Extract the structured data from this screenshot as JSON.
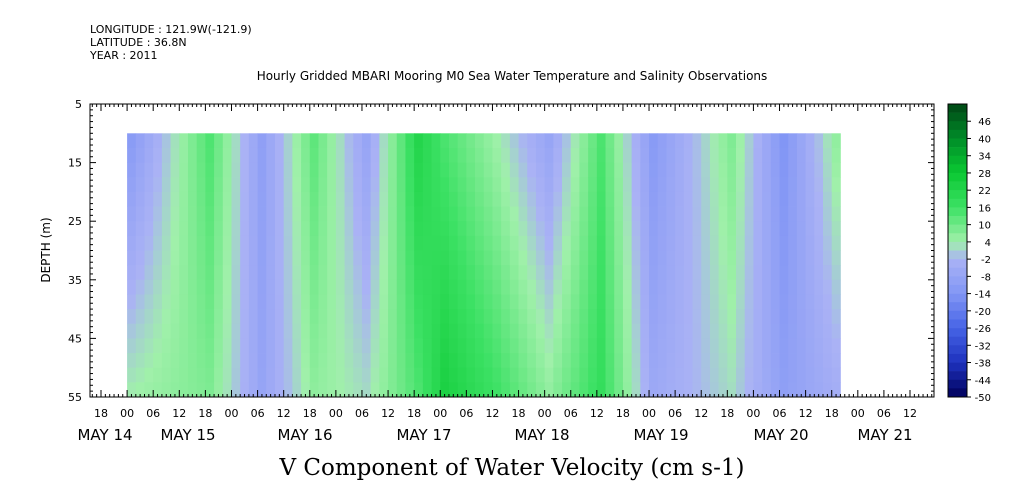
{
  "header": {
    "longitude": "LONGITUDE : 121.9W(-121.9)",
    "latitude": "LATITUDE : 36.8N",
    "year": "YEAR : 2011"
  },
  "chart_data": {
    "type": "heatmap",
    "title": "Hourly Gridded MBARI Mooring M0 Sea Water Temperature and Salinity Observations",
    "xlabel": "V Component of Water Velocity (cm s-1)",
    "ylabel": "DEPTH (m)",
    "ylim": [
      5,
      55
    ],
    "y_ticks": [
      "5",
      "15",
      "25",
      "35",
      "45",
      "55"
    ],
    "x_hour_ticks": [
      "18",
      "00",
      "06",
      "12",
      "18",
      "00",
      "06",
      "12",
      "18",
      "00",
      "06",
      "12",
      "18",
      "00",
      "06",
      "12",
      "18",
      "00",
      "06",
      "12",
      "18",
      "00",
      "06",
      "12",
      "18",
      "00",
      "06",
      "12",
      "18",
      "00",
      "06",
      "12"
    ],
    "x_day_labels": [
      "MAY 14",
      "MAY 15",
      "MAY 16",
      "MAY 17",
      "MAY 18",
      "MAY 19",
      "MAY 20",
      "MAY 21"
    ],
    "colorbar_labels": [
      "46",
      "40",
      "34",
      "28",
      "22",
      "16",
      "10",
      "4",
      "-2",
      "-8",
      "-14",
      "-20",
      "-26",
      "-32",
      "-38",
      "-44",
      "-50"
    ],
    "colorbar_range": [
      -50,
      52
    ],
    "data_depth_range": [
      10,
      55
    ],
    "data_time_range": [
      "MAY 15 00",
      "MAY 21 18"
    ],
    "colors": {
      "ramp_low": "#000066",
      "ramp_mid_low": "#9aa8f0",
      "ramp_mid_high": "#8ff0a0",
      "ramp_high": "#004d14"
    },
    "time_series_profile": [
      {
        "t": "MAY 15 00",
        "v_surface": -12,
        "v_bottom": 4
      },
      {
        "t": "MAY 15 18",
        "v_surface": 14,
        "v_bottom": 8
      },
      {
        "t": "MAY 16 06",
        "v_surface": -10,
        "v_bottom": -8
      },
      {
        "t": "MAY 16 18",
        "v_surface": 12,
        "v_bottom": 6
      },
      {
        "t": "MAY 17 06",
        "v_surface": -8,
        "v_bottom": 2
      },
      {
        "t": "MAY 17 18",
        "v_surface": 22,
        "v_bottom": 14
      },
      {
        "t": "MAY 18 00",
        "v_surface": 14,
        "v_bottom": 24
      },
      {
        "t": "MAY 18 12",
        "v_surface": 4,
        "v_bottom": 16
      },
      {
        "t": "MAY 19 00",
        "v_surface": -8,
        "v_bottom": 6
      },
      {
        "t": "MAY 19 12",
        "v_surface": 14,
        "v_bottom": 18
      },
      {
        "t": "MAY 20 00",
        "v_surface": -12,
        "v_bottom": -6
      },
      {
        "t": "MAY 20 18",
        "v_surface": 8,
        "v_bottom": 2
      },
      {
        "t": "MAY 21 06",
        "v_surface": -14,
        "v_bottom": -10
      },
      {
        "t": "MAY 21 18",
        "v_surface": 6,
        "v_bottom": -4
      }
    ]
  }
}
